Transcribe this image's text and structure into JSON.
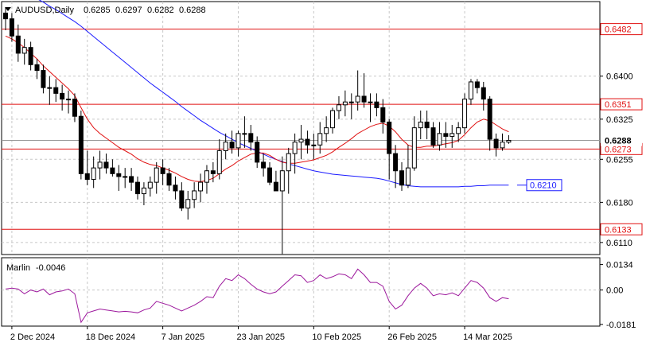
{
  "symbol_header": {
    "symbol": "AUDUSD,Daily",
    "ohlc": [
      "0.6285",
      "0.6297",
      "0.6282",
      "0.6288"
    ]
  },
  "indicator": {
    "name": "Marlin",
    "value": "-0.0046"
  },
  "colors": {
    "bull": "#000000",
    "bear": "#000000",
    "ma_fast": "#e01010",
    "ma_slow": "#1a1aff",
    "level": "#e01010",
    "marlin": "#9c179c",
    "grid": "#c8c8c8",
    "label_red": "#e01010",
    "label_blue": "#1a1aff"
  },
  "chart_data": [
    {
      "type": "candlestick",
      "title": "AUDUSD,Daily",
      "ylim": [
        0.6089,
        0.653
      ],
      "y_ticks": [
        "0.6400",
        "0.6325",
        "0.6255",
        "0.6180",
        "0.6110"
      ],
      "x_ticks": [
        "2 Dec 2024",
        "18 Dec 2024",
        "7 Jan 2025",
        "23 Jan 2025",
        "10 Feb 2025",
        "26 Feb 2025",
        "14 Mar 2025"
      ],
      "dates": [
        "2024-11-29",
        "2024-12-02",
        "2024-12-03",
        "2024-12-04",
        "2024-12-05",
        "2024-12-06",
        "2024-12-09",
        "2024-12-10",
        "2024-12-11",
        "2024-12-12",
        "2024-12-13",
        "2024-12-16",
        "2024-12-17",
        "2024-12-18",
        "2024-12-19",
        "2024-12-20",
        "2024-12-23",
        "2024-12-24",
        "2024-12-26",
        "2024-12-27",
        "2024-12-30",
        "2024-12-31",
        "2025-01-02",
        "2025-01-03",
        "2025-01-06",
        "2025-01-07",
        "2025-01-08",
        "2025-01-09",
        "2025-01-10",
        "2025-01-13",
        "2025-01-14",
        "2025-01-15",
        "2025-01-16",
        "2025-01-17",
        "2025-01-20",
        "2025-01-21",
        "2025-01-22",
        "2025-01-23",
        "2025-01-24",
        "2025-01-27",
        "2025-01-28",
        "2025-01-29",
        "2025-01-30",
        "2025-01-31",
        "2025-02-03",
        "2025-02-04",
        "2025-02-05",
        "2025-02-06",
        "2025-02-07",
        "2025-02-10",
        "2025-02-11",
        "2025-02-12",
        "2025-02-13",
        "2025-02-14",
        "2025-02-17",
        "2025-02-18",
        "2025-02-19",
        "2025-02-20",
        "2025-02-21",
        "2025-02-24",
        "2025-02-25",
        "2025-02-26",
        "2025-02-27",
        "2025-02-28",
        "2025-03-03",
        "2025-03-04",
        "2025-03-05",
        "2025-03-06",
        "2025-03-07",
        "2025-03-10",
        "2025-03-11",
        "2025-03-12",
        "2025-03-13",
        "2025-03-14",
        "2025-03-17",
        "2025-03-18",
        "2025-03-19",
        "2025-03-20",
        "2025-03-21",
        "2025-03-24",
        "2025-03-25"
      ],
      "open": [
        0.651,
        0.65,
        0.647,
        0.644,
        0.645,
        0.642,
        0.641,
        0.638,
        0.638,
        0.637,
        0.636,
        0.636,
        0.633,
        0.623,
        0.622,
        0.624,
        0.625,
        0.624,
        0.623,
        0.6225,
        0.6225,
        0.6215,
        0.6195,
        0.6205,
        0.6215,
        0.624,
        0.623,
        0.621,
        0.62,
        0.617,
        0.6185,
        0.62,
        0.6215,
        0.6235,
        0.623,
        0.627,
        0.6285,
        0.6275,
        0.63,
        0.63,
        0.6285,
        0.625,
        0.624,
        0.6215,
        0.62,
        0.6235,
        0.6265,
        0.6285,
        0.629,
        0.628,
        0.628,
        0.63,
        0.631,
        0.634,
        0.635,
        0.6355,
        0.6355,
        0.6365,
        0.6355,
        0.6355,
        0.6345,
        0.632,
        0.6265,
        0.6235,
        0.621,
        0.624,
        0.631,
        0.632,
        0.631,
        0.628,
        0.63,
        0.6295,
        0.63,
        0.631,
        0.636,
        0.639,
        0.638,
        0.636,
        0.629,
        0.6275,
        0.6285
      ],
      "high": [
        0.652,
        0.651,
        0.649,
        0.6465,
        0.646,
        0.643,
        0.642,
        0.64,
        0.6395,
        0.6385,
        0.6375,
        0.637,
        0.634,
        0.627,
        0.626,
        0.627,
        0.6265,
        0.6255,
        0.6245,
        0.624,
        0.624,
        0.6225,
        0.6215,
        0.6225,
        0.625,
        0.6255,
        0.624,
        0.6225,
        0.6215,
        0.62,
        0.6215,
        0.623,
        0.6245,
        0.625,
        0.629,
        0.63,
        0.6305,
        0.6305,
        0.633,
        0.6315,
        0.6295,
        0.6265,
        0.625,
        0.6235,
        0.626,
        0.6275,
        0.63,
        0.6315,
        0.6305,
        0.63,
        0.632,
        0.633,
        0.6345,
        0.6365,
        0.6375,
        0.637,
        0.641,
        0.6405,
        0.637,
        0.637,
        0.636,
        0.6325,
        0.628,
        0.625,
        0.628,
        0.633,
        0.634,
        0.634,
        0.632,
        0.632,
        0.632,
        0.6315,
        0.632,
        0.637,
        0.6395,
        0.6395,
        0.639,
        0.6365,
        0.63,
        0.63,
        0.6297
      ],
      "low": [
        0.648,
        0.646,
        0.6425,
        0.642,
        0.641,
        0.6395,
        0.637,
        0.635,
        0.6355,
        0.634,
        0.6335,
        0.632,
        0.622,
        0.621,
        0.6205,
        0.622,
        0.623,
        0.6225,
        0.62,
        0.6205,
        0.62,
        0.6185,
        0.6175,
        0.619,
        0.6195,
        0.621,
        0.62,
        0.6185,
        0.6165,
        0.615,
        0.617,
        0.618,
        0.6195,
        0.6215,
        0.622,
        0.6255,
        0.6265,
        0.626,
        0.6275,
        0.627,
        0.624,
        0.6225,
        0.621,
        0.62,
        0.609,
        0.6195,
        0.623,
        0.6255,
        0.6265,
        0.6255,
        0.6265,
        0.6285,
        0.63,
        0.6325,
        0.633,
        0.6325,
        0.634,
        0.6345,
        0.632,
        0.633,
        0.63,
        0.622,
        0.6205,
        0.62,
        0.6205,
        0.6235,
        0.629,
        0.629,
        0.6275,
        0.627,
        0.6275,
        0.6275,
        0.6285,
        0.63,
        0.635,
        0.637,
        0.634,
        0.627,
        0.626,
        0.627,
        0.6282
      ],
      "close": [
        0.65,
        0.647,
        0.644,
        0.645,
        0.642,
        0.641,
        0.638,
        0.638,
        0.637,
        0.636,
        0.636,
        0.633,
        0.623,
        0.622,
        0.624,
        0.625,
        0.624,
        0.623,
        0.6225,
        0.6225,
        0.6215,
        0.6195,
        0.6205,
        0.6215,
        0.624,
        0.623,
        0.621,
        0.62,
        0.617,
        0.6185,
        0.62,
        0.6215,
        0.6235,
        0.623,
        0.627,
        0.6285,
        0.6275,
        0.63,
        0.63,
        0.6285,
        0.625,
        0.624,
        0.6215,
        0.62,
        0.6235,
        0.6265,
        0.6285,
        0.629,
        0.628,
        0.628,
        0.63,
        0.631,
        0.634,
        0.635,
        0.6355,
        0.6355,
        0.6365,
        0.6355,
        0.6355,
        0.6345,
        0.632,
        0.6265,
        0.6235,
        0.621,
        0.624,
        0.631,
        0.632,
        0.631,
        0.628,
        0.63,
        0.6295,
        0.63,
        0.631,
        0.636,
        0.639,
        0.638,
        0.636,
        0.629,
        0.6275,
        0.6285,
        0.6288
      ],
      "ma_fast": [
        0.647,
        0.6465,
        0.6458,
        0.645,
        0.644,
        0.643,
        0.6418,
        0.6408,
        0.6398,
        0.6388,
        0.6378,
        0.6366,
        0.6345,
        0.6325,
        0.631,
        0.63,
        0.6292,
        0.6284,
        0.6276,
        0.627,
        0.6264,
        0.6256,
        0.625,
        0.6246,
        0.6244,
        0.624,
        0.6236,
        0.6231,
        0.6225,
        0.622,
        0.6217,
        0.6216,
        0.6218,
        0.6222,
        0.623,
        0.6238,
        0.6244,
        0.6252,
        0.6258,
        0.6264,
        0.6266,
        0.6266,
        0.6262,
        0.6255,
        0.625,
        0.6248,
        0.6248,
        0.625,
        0.6252,
        0.6254,
        0.6258,
        0.6262,
        0.6268,
        0.6276,
        0.6283,
        0.6291,
        0.63,
        0.6306,
        0.6312,
        0.6316,
        0.6318,
        0.6313,
        0.6303,
        0.629,
        0.628,
        0.6276,
        0.6276,
        0.6278,
        0.6278,
        0.628,
        0.6282,
        0.6284,
        0.6288,
        0.6298,
        0.631,
        0.632,
        0.6325,
        0.6322,
        0.6315,
        0.6308,
        0.6303
      ],
      "ma_slow": [
        0.656,
        0.6556,
        0.6551,
        0.6546,
        0.6541,
        0.6535,
        0.6529,
        0.6522,
        0.6516,
        0.6509,
        0.6502,
        0.6495,
        0.6487,
        0.6478,
        0.6469,
        0.646,
        0.6451,
        0.6442,
        0.6433,
        0.6424,
        0.6415,
        0.6406,
        0.6397,
        0.6388,
        0.638,
        0.6372,
        0.6364,
        0.6356,
        0.6347,
        0.6339,
        0.6331,
        0.6323,
        0.6316,
        0.6309,
        0.6302,
        0.6296,
        0.629,
        0.6284,
        0.6279,
        0.6274,
        0.6269,
        0.6264,
        0.6259,
        0.6255,
        0.6251,
        0.6247,
        0.6244,
        0.6241,
        0.6238,
        0.6235,
        0.6233,
        0.6231,
        0.6229,
        0.6228,
        0.6227,
        0.6226,
        0.6225,
        0.6224,
        0.6223,
        0.6222,
        0.622,
        0.6217,
        0.6214,
        0.6211,
        0.6209,
        0.6208,
        0.6207,
        0.6207,
        0.6207,
        0.6207,
        0.6207,
        0.6207,
        0.6207,
        0.6208,
        0.6208,
        0.6209,
        0.6209,
        0.621,
        0.621,
        0.621,
        0.621
      ],
      "levels": [
        {
          "value": 0.6482,
          "label": "0.6482"
        },
        {
          "value": 0.6351,
          "label": "0.6351"
        },
        {
          "value": 0.6273,
          "label": "0.6273"
        },
        {
          "value": 0.6133,
          "label": "0.6133"
        }
      ],
      "price_label": "0.6288",
      "ma_slow_label": "0.6210",
      "grid": true
    },
    {
      "type": "line",
      "title": "Marlin -0.0046",
      "ylim": [
        -0.019,
        0.017
      ],
      "y_ticks": [
        "0.0134",
        "0.00",
        "-0.0181"
      ],
      "series": [
        {
          "name": "Marlin",
          "values": [
            0.0005,
            0.001,
            0.0005,
            -0.002,
            0.0,
            -0.001,
            0.0005,
            -0.0025,
            -0.001,
            -0.0005,
            0.0005,
            -0.002,
            -0.017,
            -0.012,
            -0.011,
            -0.01,
            -0.0105,
            -0.011,
            -0.0115,
            -0.0112,
            -0.0115,
            -0.012,
            -0.0105,
            -0.0095,
            -0.006,
            -0.007,
            -0.008,
            -0.0095,
            -0.011,
            -0.0095,
            -0.008,
            -0.006,
            -0.0035,
            -0.004,
            0.002,
            0.006,
            0.005,
            0.008,
            0.006,
            0.003,
            0.0005,
            -0.001,
            -0.002,
            -0.001,
            0.002,
            0.005,
            0.008,
            0.0075,
            0.004,
            0.005,
            0.008,
            0.006,
            0.007,
            0.0085,
            0.008,
            0.006,
            0.011,
            0.008,
            0.004,
            0.004,
            0.002,
            -0.006,
            -0.01,
            -0.008,
            -0.003,
            0.001,
            0.0035,
            0.001,
            -0.003,
            -0.002,
            -0.0025,
            -0.0015,
            -0.003,
            0.001,
            0.005,
            0.004,
            0.001,
            -0.004,
            -0.006,
            -0.004,
            -0.0046
          ]
        }
      ],
      "grid": true
    }
  ]
}
